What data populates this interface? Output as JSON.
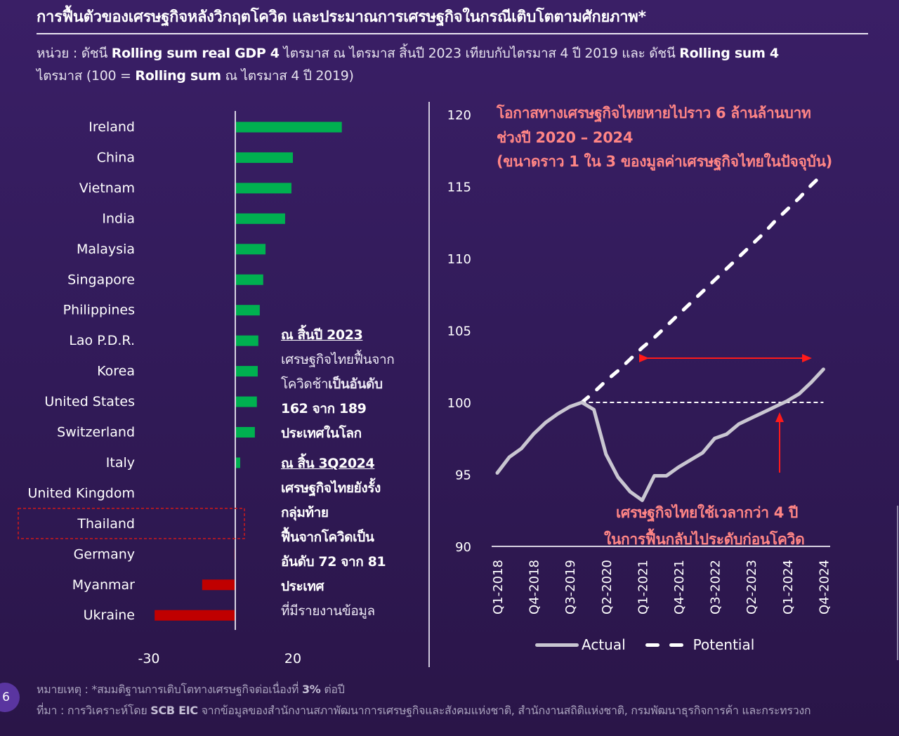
{
  "header": {
    "title": "การฟื้นตัวของเศรษฐกิจหลังวิกฤตโควิด และประมาณการเศรษฐกิจในกรณีเติบโตตามศักยภาพ*",
    "unit_prefix": "หน่วย : ดัชนี ",
    "unit_bold1": "Rolling sum real GDP 4",
    "unit_mid1": " ไตรมาส ณ ไตรมาส สิ้นปี 2023 เทียบกับไตรมาส 4 ปี 2019 และ ดัชนี ",
    "unit_bold2": "Rolling sum 4",
    "unit_line2_a": "ไตรมาส (100 = ",
    "unit_bold3": "Rolling sum",
    "unit_line2_b": " ณ ไตรมาส 4 ปี 2019)"
  },
  "colors": {
    "positive_bar": "#00b050",
    "negative_bar": "#c00000",
    "actual_line": "#c9c6d1",
    "potential_line": "#ffffff",
    "annotation": "#ff8585",
    "arrow": "#ff1a1a",
    "highlight_box": "#d01a1a"
  },
  "left_annotation": {
    "h1": "ณ สิ้นปี 2023",
    "l1": "เศรษฐกิจไทยฟื้นจาก",
    "l2a": "โควิดช้า",
    "l2b": "เป็นอันดับ",
    "l3": "162 จาก 189",
    "l4": "ประเทศในโลก",
    "h2": "ณ สิ้น 3Q2024",
    "l5": "เศรษฐกิจไทยยังรั้ง",
    "l6": "กลุ่มท้าย",
    "l7": "ฟื้นจากโควิดเป็น",
    "l8": "อันดับ 72 จาก 81",
    "l9": "ประเทศ",
    "l10": "ที่มีรายงานข้อมูล"
  },
  "right_annotation": {
    "top1": "โอกาสทางเศรษฐกิจไทยหายไปราว 6 ล้านล้านบาท",
    "top2": "ช่วงปี 2020 – 2024",
    "top3": "(ขนาดราว 1 ใน 3 ของมูลค่าเศรษฐกิจไทยในปัจจุบัน)",
    "bottom1": "เศรษฐกิจไทยใช้เวลากว่า 4 ปี",
    "bottom2": "ในการฟื้นกลับไประดับก่อนโควิด"
  },
  "footer": {
    "note_prefix": "หมายเหตุ : *สมมติฐานการเติบโตทางเศรษฐกิจต่อเนื่องที่ ",
    "note_bold": "3%",
    "note_suffix": " ต่อปี",
    "source_prefix": "ที่มา : การวิเคราะห์โดย ",
    "source_bold": "SCB EIC",
    "source_suffix": " จากข้อมูลของสำนักงานสภาพัฒนาการเศรษฐกิจและสังคมแห่งชาติ, สำนักงานสถิติแห่งชาติ, กรมพัฒนาธุรกิจการค้า และกระทรวงก",
    "page_number": "6"
  },
  "chart_data": [
    {
      "type": "bar",
      "orientation": "horizontal",
      "title": "",
      "categories": [
        "Ireland",
        "China",
        "Vietnam",
        "India",
        "Malaysia",
        "Singapore",
        "Philippines",
        "Lao P.D.R.",
        "Korea",
        "United States",
        "Switzerland",
        "Italy",
        "United Kingdom",
        "Thailand",
        "Germany",
        "Myanmar",
        "Ukraine"
      ],
      "values": [
        37,
        20,
        19.5,
        17.3,
        10.5,
        9.7,
        8.5,
        8,
        7.8,
        7.5,
        6.8,
        1.7,
        0.1,
        -0.2,
        -0.3,
        -11.5,
        -28
      ],
      "highlight": "Thailand",
      "xlim": [
        -30,
        40
      ],
      "xticks": [
        "-30",
        "20"
      ],
      "xtick_values": [
        -30,
        20
      ],
      "grid": false
    },
    {
      "type": "line",
      "title": "",
      "x": [
        "Q1-2018",
        "Q2-2018",
        "Q3-2018",
        "Q4-2018",
        "Q1-2019",
        "Q2-2019",
        "Q3-2019",
        "Q4-2019",
        "Q1-2020",
        "Q2-2020",
        "Q3-2020",
        "Q4-2020",
        "Q1-2021",
        "Q2-2021",
        "Q3-2021",
        "Q4-2021",
        "Q1-2022",
        "Q2-2022",
        "Q3-2022",
        "Q4-2022",
        "Q1-2023",
        "Q2-2023",
        "Q3-2023",
        "Q4-2023",
        "Q1-2024",
        "Q2-2024",
        "Q3-2024",
        "Q4-2024"
      ],
      "xtick_labels": [
        "Q1-2018",
        "Q4-2018",
        "Q3-2019",
        "Q2-2020",
        "Q1-2021",
        "Q4-2021",
        "Q3-2022",
        "Q2-2023",
        "Q1-2024",
        "Q4-2024"
      ],
      "ylim": [
        90,
        120
      ],
      "yticks": [
        "90",
        "95",
        "100",
        "105",
        "110",
        "115",
        "120"
      ],
      "ytick_values": [
        90,
        95,
        100,
        105,
        110,
        115,
        120
      ],
      "series": [
        {
          "name": "Actual",
          "style": "solid",
          "values": [
            95.1,
            96.2,
            96.8,
            97.8,
            98.6,
            99.2,
            99.7,
            100.0,
            99.5,
            96.4,
            94.8,
            93.8,
            93.2,
            94.9,
            94.9,
            95.5,
            96.0,
            96.5,
            97.5,
            97.8,
            98.5,
            98.9,
            99.3,
            99.7,
            100.1,
            100.6,
            101.4,
            102.3
          ]
        },
        {
          "name": "Potential",
          "style": "dashed",
          "values": [
            null,
            null,
            null,
            null,
            null,
            null,
            null,
            100.0,
            100.7,
            101.5,
            102.2,
            103.0,
            103.8,
            104.5,
            105.3,
            106.1,
            106.9,
            107.7,
            108.5,
            109.3,
            110.1,
            110.9,
            111.7,
            112.6,
            113.4,
            114.2,
            115.1,
            115.9
          ]
        }
      ],
      "reference_line": {
        "value": 100,
        "from": "Q4-2019",
        "to": "Q4-2024",
        "style": "dashed"
      },
      "legend": [
        "Actual",
        "Potential"
      ],
      "legend_position": "bottom",
      "grid": false
    }
  ]
}
